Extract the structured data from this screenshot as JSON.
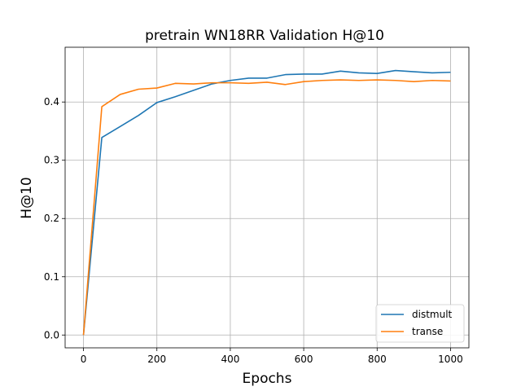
{
  "chart_data": {
    "type": "line",
    "title": "pretrain WN18RR Validation H@10",
    "xlabel": "Epochs",
    "ylabel": "H@10",
    "xlim": [
      -50,
      1050
    ],
    "ylim": [
      -0.022,
      0.494
    ],
    "xticks": [
      0,
      200,
      400,
      600,
      800,
      1000
    ],
    "yticks": [
      0.0,
      0.1,
      0.2,
      0.3,
      0.4
    ],
    "ytick_labels": [
      "0.0",
      "0.1",
      "0.2",
      "0.3",
      "0.4"
    ],
    "grid": true,
    "legend_position": "lower right",
    "x": [
      0,
      50,
      100,
      150,
      200,
      250,
      300,
      350,
      400,
      450,
      500,
      550,
      600,
      650,
      700,
      750,
      800,
      850,
      900,
      950,
      1000
    ],
    "series": [
      {
        "name": "distmult",
        "color": "#1f77b4",
        "values": [
          0.0,
          0.339,
          0.358,
          0.377,
          0.399,
          0.409,
          0.42,
          0.431,
          0.437,
          0.441,
          0.441,
          0.447,
          0.448,
          0.448,
          0.453,
          0.45,
          0.449,
          0.454,
          0.452,
          0.45,
          0.451
        ]
      },
      {
        "name": "transe",
        "color": "#ff7f0e",
        "values": [
          0.0,
          0.392,
          0.413,
          0.422,
          0.424,
          0.432,
          0.431,
          0.433,
          0.433,
          0.432,
          0.434,
          0.43,
          0.435,
          0.437,
          0.438,
          0.437,
          0.438,
          0.437,
          0.435,
          0.437,
          0.436
        ]
      }
    ]
  }
}
